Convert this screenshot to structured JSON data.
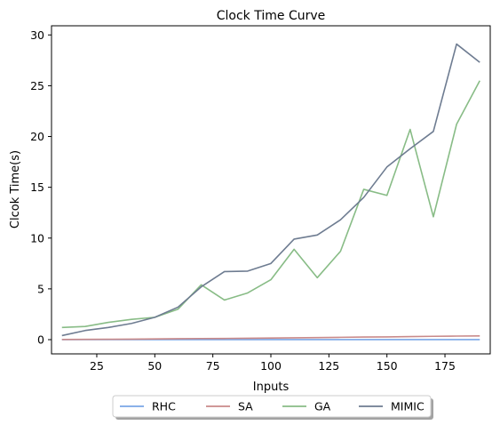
{
  "chart_data": {
    "type": "line",
    "title": "Clock Time Curve",
    "xlabel": "Inputs",
    "ylabel": "Clcok Time(s)",
    "xlim": [
      5.5,
      194.5
    ],
    "ylim": [
      -1.4,
      30.9
    ],
    "xticks": [
      25,
      50,
      75,
      100,
      125,
      150,
      175
    ],
    "yticks": [
      0,
      5,
      10,
      15,
      20,
      25,
      30
    ],
    "grid": false,
    "legend": {
      "placement": "bottom-center-outside",
      "columns": 4
    },
    "x": [
      10,
      20,
      30,
      40,
      50,
      60,
      70,
      80,
      90,
      100,
      110,
      120,
      130,
      140,
      150,
      160,
      170,
      180,
      190
    ],
    "series": [
      {
        "name": "RHC",
        "color": "#7aa6e6",
        "values": [
          0.01,
          0.01,
          0.01,
          0.01,
          0.01,
          0.01,
          0.01,
          0.01,
          0.01,
          0.01,
          0.01,
          0.01,
          0.01,
          0.01,
          0.01,
          0.01,
          0.01,
          0.01,
          0.01
        ]
      },
      {
        "name": "SA",
        "color": "#c98a8a",
        "values": [
          0.02,
          0.03,
          0.04,
          0.05,
          0.07,
          0.09,
          0.11,
          0.12,
          0.14,
          0.16,
          0.18,
          0.2,
          0.23,
          0.26,
          0.27,
          0.3,
          0.33,
          0.35,
          0.37
        ]
      },
      {
        "name": "GA",
        "color": "#88bc86",
        "values": [
          1.2,
          1.3,
          1.7,
          2.0,
          2.2,
          3.0,
          5.4,
          3.9,
          4.6,
          5.9,
          8.9,
          6.1,
          8.7,
          14.8,
          14.2,
          20.7,
          12.1,
          21.2,
          25.5
        ]
      },
      {
        "name": "MIMIC",
        "color": "#6e7c91",
        "values": [
          0.4,
          0.9,
          1.2,
          1.6,
          2.2,
          3.2,
          5.2,
          6.7,
          6.75,
          7.5,
          9.9,
          10.3,
          11.8,
          14.0,
          17.0,
          18.8,
          20.5,
          29.1,
          27.3
        ]
      }
    ]
  }
}
